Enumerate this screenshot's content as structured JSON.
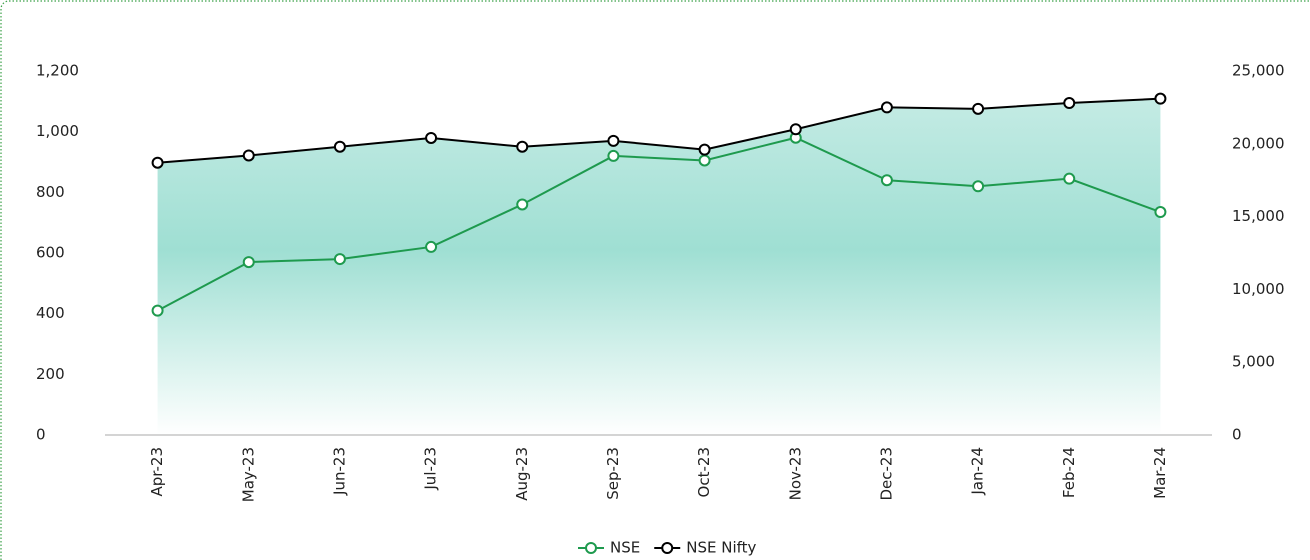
{
  "chart_data": {
    "type": "line",
    "categories": [
      "Apr-23",
      "May-23",
      "Jun-23",
      "Jul-23",
      "Aug-23",
      "Sep-23",
      "Oct-23",
      "Nov-23",
      "Dec-23",
      "Jan-24",
      "Feb-24",
      "Mar-24"
    ],
    "series": [
      {
        "name": "NSE",
        "color": "#1e9a4e",
        "axis": "y",
        "values": [
          410,
          570,
          580,
          620,
          760,
          920,
          905,
          980,
          840,
          820,
          845,
          735
        ]
      },
      {
        "name": "NSE Nifty",
        "color": "#000000",
        "axis": "y2",
        "area": true,
        "values": [
          18700,
          19200,
          19800,
          20400,
          19800,
          20200,
          19600,
          21000,
          22500,
          22400,
          22800,
          23100
        ]
      }
    ],
    "ylim": [
      0,
      1200
    ],
    "yticks": [
      0,
      200,
      400,
      600,
      800,
      {
        "value": 1000,
        "label": "1,000"
      },
      {
        "value": 1200,
        "label": "1,200"
      }
    ],
    "y2lim": [
      0,
      25000
    ],
    "y2ticks": [
      0,
      {
        "value": 5000,
        "label": "5,000"
      },
      {
        "value": 10000,
        "label": "10,000"
      },
      {
        "value": 15000,
        "label": "15,000"
      },
      {
        "value": 20000,
        "label": "20,000"
      },
      {
        "value": 25000,
        "label": "25,000"
      }
    ],
    "legend": "bottom"
  }
}
